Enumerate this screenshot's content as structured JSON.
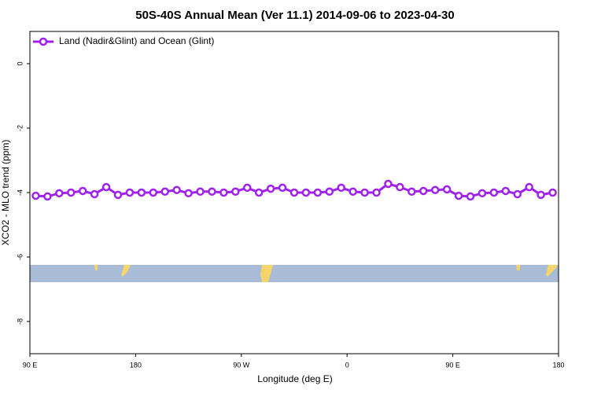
{
  "chart_data": {
    "type": "line",
    "title": "50S-40S Annual Mean (Ver 11.1)   2014-09-06 to 2023-04-30",
    "x_label": "Longitude (deg E)",
    "y_label": "XCO2 - MLO trend (ppm)",
    "x": [
      95,
      105,
      115,
      125,
      135,
      145,
      155,
      165,
      175,
      185,
      195,
      205,
      215,
      225,
      235,
      245,
      255,
      265,
      275,
      285,
      295,
      305,
      315,
      325,
      335,
      345,
      355,
      365,
      375,
      385,
      395,
      405,
      415,
      425,
      435,
      445,
      455,
      465,
      475,
      485,
      495,
      505,
      515,
      525,
      535
    ],
    "series": [
      {
        "name": "Land (Nadir&Glint) and Ocean (Glint)",
        "color": "#a020f0",
        "values": [
          -4.1,
          -4.12,
          -4.02,
          -4.0,
          -3.95,
          -4.05,
          -3.83,
          -4.07,
          -4.0,
          -4.0,
          -4.0,
          -3.97,
          -3.92,
          -4.02,
          -3.97,
          -3.97,
          -4.0,
          -3.97,
          -3.85,
          -4.0,
          -3.88,
          -3.85,
          -4.0,
          -4.0,
          -4.0,
          -3.97,
          -3.85,
          -3.97,
          -4.0,
          -4.0,
          -3.73,
          -3.83,
          -3.97,
          -3.95,
          -3.92,
          -3.9,
          -4.1,
          -4.12,
          -4.02,
          -4.0,
          -3.95,
          -4.05,
          -3.83,
          -4.07,
          -4.0
        ]
      }
    ],
    "xlim": [
      90,
      540
    ],
    "xticks": [
      {
        "value": 90,
        "label": "90 E"
      },
      180,
      {
        "value": 270,
        "label": "90 W"
      },
      {
        "value": 360,
        "label": "0"
      },
      {
        "value": 450,
        "label": "90 E"
      },
      {
        "value": 540,
        "label": "180"
      }
    ],
    "ylim": [
      -9,
      1
    ],
    "yticks": [
      0,
      -2,
      -4,
      -6,
      -8
    ],
    "legend": "top-left"
  }
}
